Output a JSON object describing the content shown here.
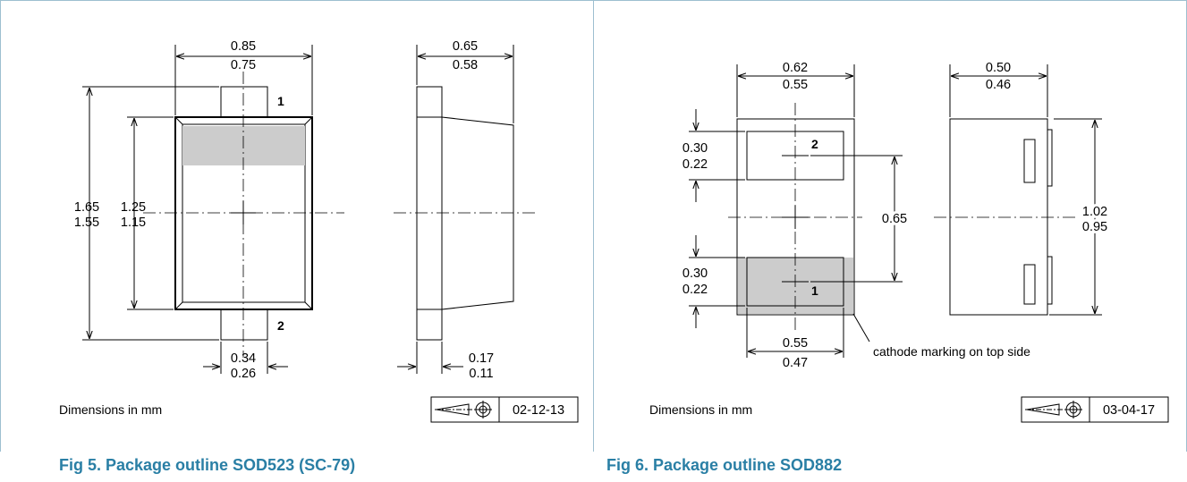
{
  "fig5": {
    "caption": "Fig 5.   Package outline SOD523 (SC-79)",
    "dims": {
      "width_max": "0.85",
      "width_min": "0.75",
      "side_max": "0.65",
      "side_min": "0.58",
      "length_max": "1.65",
      "length_min": "1.55",
      "body_max": "1.25",
      "body_min": "1.15",
      "lead_max": "0.34",
      "lead_min": "0.26",
      "thk_max": "0.17",
      "thk_min": "0.11"
    },
    "pin1": "1",
    "pin2": "2",
    "units_note": "Dimensions in mm",
    "date_code": "02-12-13"
  },
  "fig6": {
    "caption": "Fig 6.   Package outline SOD882",
    "dims": {
      "width_max": "0.62",
      "width_min": "0.55",
      "side_max": "0.50",
      "side_min": "0.46",
      "pad_top_max": "0.30",
      "pad_top_min": "0.22",
      "pad_bot_max": "0.30",
      "pad_bot_min": "0.22",
      "pitch": "0.65",
      "length_max": "1.02",
      "length_min": "0.95",
      "pad_w_max": "0.55",
      "pad_w_min": "0.47"
    },
    "pin1": "1",
    "pin2": "2",
    "cathode_note": "cathode marking on top side",
    "units_note": "Dimensions in mm",
    "date_code": "03-04-17"
  }
}
